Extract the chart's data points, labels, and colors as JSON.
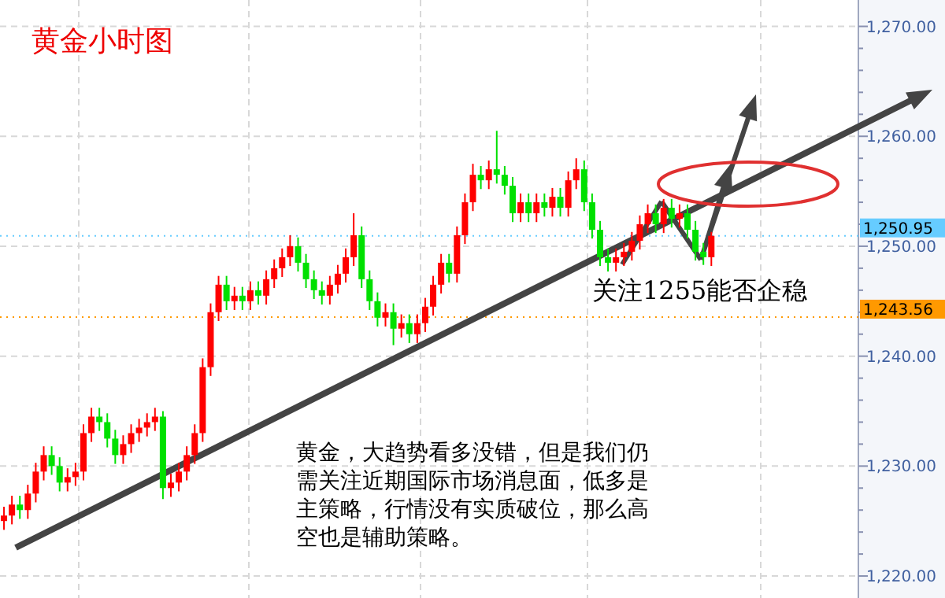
{
  "chart_data": {
    "type": "candlestick",
    "title": "黄金小时图",
    "categories": [
      null,
      null,
      null,
      null,
      null,
      null,
      null,
      null,
      null,
      null,
      null,
      null,
      null,
      null,
      null,
      null,
      null,
      null,
      null,
      null,
      null,
      null,
      null,
      null,
      null,
      null,
      null,
      null,
      null,
      null,
      null,
      null,
      null,
      null,
      null,
      null,
      null,
      null,
      null,
      null,
      null,
      null,
      null,
      null,
      null,
      null,
      null,
      null,
      null,
      null,
      null,
      null,
      null,
      null,
      null,
      null,
      null,
      null,
      null,
      null,
      null,
      null,
      null,
      null,
      null,
      null,
      null,
      null,
      null,
      null,
      null,
      null,
      null,
      null,
      null,
      null,
      null,
      null,
      null,
      null,
      null,
      null,
      null,
      null,
      null,
      null,
      null,
      null,
      null,
      null,
      null,
      null,
      null,
      null,
      null,
      null,
      null,
      null,
      null,
      null,
      null,
      null,
      null,
      null,
      null,
      null,
      null,
      null
    ],
    "ohlc": [
      [
        1225.0,
        1226.3,
        1224.2,
        1225.5
      ],
      [
        1225.5,
        1227.3,
        1224.7,
        1226.5
      ],
      [
        1226.5,
        1227.3,
        1225.2,
        1226.0
      ],
      [
        1226.0,
        1228.3,
        1225.2,
        1227.5
      ],
      [
        1227.5,
        1230.3,
        1226.7,
        1229.5
      ],
      [
        1229.5,
        1231.8,
        1228.7,
        1231.0
      ],
      [
        1231.0,
        1231.8,
        1229.2,
        1230.0
      ],
      [
        1230.0,
        1230.8,
        1227.7,
        1228.5
      ],
      [
        1228.5,
        1229.8,
        1227.7,
        1229.0
      ],
      [
        1229.0,
        1230.3,
        1228.2,
        1229.5
      ],
      [
        1229.5,
        1233.8,
        1228.7,
        1233.0
      ],
      [
        1233.0,
        1235.3,
        1232.2,
        1234.5
      ],
      [
        1234.5,
        1235.3,
        1233.2,
        1234.0
      ],
      [
        1234.0,
        1234.8,
        1231.7,
        1232.5
      ],
      [
        1232.5,
        1233.3,
        1230.2,
        1231.0
      ],
      [
        1231.0,
        1232.8,
        1230.2,
        1232.0
      ],
      [
        1232.0,
        1233.8,
        1231.2,
        1233.0
      ],
      [
        1233.0,
        1234.3,
        1232.2,
        1233.5
      ],
      [
        1233.5,
        1234.8,
        1232.7,
        1234.0
      ],
      [
        1234.0,
        1235.3,
        1233.2,
        1234.5
      ],
      [
        1234.5,
        1235.0,
        1227.0,
        1228.0
      ],
      [
        1228.0,
        1229.3,
        1227.2,
        1228.5
      ],
      [
        1228.5,
        1230.3,
        1227.7,
        1229.5
      ],
      [
        1229.5,
        1231.8,
        1228.7,
        1231.0
      ],
      [
        1231.0,
        1233.8,
        1230.2,
        1233.0
      ],
      [
        1233.0,
        1239.8,
        1232.2,
        1239.0
      ],
      [
        1239.0,
        1244.8,
        1238.2,
        1244.0
      ],
      [
        1244.0,
        1247.3,
        1243.2,
        1246.5
      ],
      [
        1246.5,
        1247.3,
        1244.2,
        1245.0
      ],
      [
        1245.0,
        1246.3,
        1244.2,
        1245.5
      ],
      [
        1245.5,
        1246.3,
        1244.2,
        1245.0
      ],
      [
        1245.0,
        1246.8,
        1244.2,
        1246.0
      ],
      [
        1246.0,
        1246.8,
        1244.7,
        1245.5
      ],
      [
        1245.5,
        1247.8,
        1244.7,
        1247.0
      ],
      [
        1247.0,
        1248.8,
        1246.2,
        1248.0
      ],
      [
        1248.0,
        1249.8,
        1247.2,
        1249.0
      ],
      [
        1249.0,
        1251.0,
        1248.2,
        1250.0
      ],
      [
        1250.0,
        1250.8,
        1247.7,
        1248.5
      ],
      [
        1248.5,
        1249.3,
        1246.2,
        1247.0
      ],
      [
        1247.0,
        1247.8,
        1245.2,
        1246.0
      ],
      [
        1246.0,
        1246.8,
        1244.7,
        1245.5
      ],
      [
        1245.5,
        1247.3,
        1244.7,
        1246.5
      ],
      [
        1246.5,
        1248.3,
        1245.7,
        1247.5
      ],
      [
        1247.5,
        1249.8,
        1246.7,
        1249.0
      ],
      [
        1249.0,
        1253.0,
        1248.2,
        1251.0
      ],
      [
        1251.0,
        1251.8,
        1246.2,
        1247.0
      ],
      [
        1247.0,
        1247.8,
        1244.2,
        1245.0
      ],
      [
        1245.0,
        1245.8,
        1242.7,
        1243.5
      ],
      [
        1243.5,
        1244.8,
        1242.7,
        1244.0
      ],
      [
        1244.0,
        1244.8,
        1241.0,
        1242.5
      ],
      [
        1242.5,
        1243.8,
        1241.7,
        1243.0
      ],
      [
        1243.0,
        1243.8,
        1241.2,
        1242.0
      ],
      [
        1242.0,
        1243.8,
        1241.2,
        1243.0
      ],
      [
        1243.0,
        1245.3,
        1242.2,
        1244.5
      ],
      [
        1244.5,
        1247.3,
        1243.7,
        1246.5
      ],
      [
        1246.5,
        1249.3,
        1245.7,
        1248.5
      ],
      [
        1248.5,
        1249.3,
        1246.7,
        1247.5
      ],
      [
        1247.5,
        1251.8,
        1246.7,
        1251.0
      ],
      [
        1251.0,
        1254.8,
        1250.2,
        1254.0
      ],
      [
        1254.0,
        1257.5,
        1253.2,
        1256.5
      ],
      [
        1256.5,
        1257.3,
        1255.2,
        1256.0
      ],
      [
        1256.0,
        1257.8,
        1255.2,
        1257.0
      ],
      [
        1257.0,
        1260.5,
        1255.7,
        1256.5
      ],
      [
        1256.5,
        1257.3,
        1254.7,
        1255.5
      ],
      [
        1255.5,
        1256.3,
        1252.2,
        1253.0
      ],
      [
        1253.0,
        1254.8,
        1252.2,
        1254.0
      ],
      [
        1254.0,
        1254.8,
        1252.2,
        1253.0
      ],
      [
        1253.0,
        1254.8,
        1252.2,
        1254.0
      ],
      [
        1254.0,
        1254.8,
        1252.7,
        1253.5
      ],
      [
        1253.5,
        1255.3,
        1252.7,
        1254.5
      ],
      [
        1254.5,
        1255.3,
        1252.7,
        1253.5
      ],
      [
        1253.5,
        1256.8,
        1252.7,
        1256.0
      ],
      [
        1256.0,
        1258.0,
        1255.2,
        1257.0
      ],
      [
        1257.0,
        1257.8,
        1253.2,
        1254.0
      ],
      [
        1254.0,
        1254.8,
        1250.7,
        1251.5
      ],
      [
        1251.5,
        1252.3,
        1248.2,
        1249.0
      ],
      [
        1249.0,
        1249.8,
        1247.7,
        1248.5
      ],
      [
        1248.5,
        1249.8,
        1247.7,
        1249.0
      ],
      [
        1249.0,
        1250.3,
        1248.2,
        1249.5
      ],
      [
        1249.5,
        1251.3,
        1248.7,
        1250.5
      ],
      [
        1250.5,
        1252.8,
        1249.7,
        1252.0
      ],
      [
        1252.0,
        1253.8,
        1251.2,
        1253.0
      ],
      [
        1253.0,
        1253.8,
        1251.2,
        1252.0
      ],
      [
        1252.0,
        1254.3,
        1251.2,
        1253.5
      ],
      [
        1253.5,
        1254.3,
        1251.7,
        1252.5
      ],
      [
        1252.5,
        1253.8,
        1251.7,
        1253.0
      ],
      [
        1253.0,
        1253.8,
        1250.7,
        1251.5
      ],
      [
        1251.5,
        1252.3,
        1248.7,
        1249.5
      ],
      [
        1249.5,
        1250.3,
        1248.3,
        1249.0
      ],
      [
        1249.0,
        1251.3,
        1248.2,
        1250.95
      ],
      null,
      null,
      null,
      null,
      null,
      null,
      null,
      null,
      null,
      null,
      null,
      null,
      null,
      null,
      null,
      null,
      null,
      null
    ],
    "colors": [
      "#ff0000",
      "#ff0000",
      "#00e000",
      "#ff0000",
      "#ff0000",
      "#ff0000",
      "#00e000",
      "#00e000",
      "#ff0000",
      "#ff0000",
      "#ff0000",
      "#ff0000",
      "#00e000",
      "#00e000",
      "#00e000",
      "#ff0000",
      "#ff0000",
      "#ff0000",
      "#ff0000",
      "#ff0000",
      "#00e000",
      "#ff0000",
      "#ff0000",
      "#ff0000",
      "#ff0000",
      "#ff0000",
      "#ff0000",
      "#ff0000",
      "#00e000",
      "#ff0000",
      "#00e000",
      "#ff0000",
      "#00e000",
      "#ff0000",
      "#ff0000",
      "#ff0000",
      "#ff0000",
      "#00e000",
      "#00e000",
      "#00e000",
      "#00e000",
      "#ff0000",
      "#ff0000",
      "#ff0000",
      "#ff0000",
      "#00e000",
      "#00e000",
      "#00e000",
      "#ff0000",
      "#00e000",
      "#ff0000",
      "#00e000",
      "#ff0000",
      "#ff0000",
      "#ff0000",
      "#ff0000",
      "#00e000",
      "#ff0000",
      "#ff0000",
      "#ff0000",
      "#00e000",
      "#ff0000",
      "#00e000",
      "#00e000",
      "#00e000",
      "#ff0000",
      "#00e000",
      "#ff0000",
      "#00e000",
      "#ff0000",
      "#00e000",
      "#ff0000",
      "#ff0000",
      "#00e000",
      "#00e000",
      "#00e000",
      "#00e000",
      "#ff0000",
      "#ff0000",
      "#ff0000",
      "#ff0000",
      "#ff0000",
      "#00e000",
      "#ff0000",
      "#00e000",
      "#ff0000",
      "#00e000",
      "#00e000",
      "#00e000",
      "#ff0000",
      null,
      null,
      null,
      null,
      null,
      null,
      null,
      null,
      null,
      null,
      null,
      null,
      null,
      null,
      null,
      null,
      null,
      null
    ],
    "ylim": [
      1218,
      1272.4
    ],
    "yticks": [
      {
        "value": 1220,
        "label": "1,220.00"
      },
      {
        "value": 1222,
        "label": null
      },
      {
        "value": 1224,
        "label": null
      },
      {
        "value": 1226,
        "label": null
      },
      {
        "value": 1228,
        "label": null
      },
      {
        "value": 1230,
        "label": "1,230.00"
      },
      {
        "value": 1232,
        "label": null
      },
      {
        "value": 1234,
        "label": null
      },
      {
        "value": 1236,
        "label": null
      },
      {
        "value": 1238,
        "label": null
      },
      {
        "value": 1240,
        "label": "1,240.00"
      },
      {
        "value": 1242,
        "label": null
      },
      {
        "value": 1244,
        "label": null
      },
      {
        "value": 1246,
        "label": null
      },
      {
        "value": 1248,
        "label": null
      },
      {
        "value": 1250,
        "label": "1,250.00"
      },
      {
        "value": 1252,
        "label": null
      },
      {
        "value": 1254,
        "label": null
      },
      {
        "value": 1256,
        "label": null
      },
      {
        "value": 1258,
        "label": null
      },
      {
        "value": 1260,
        "label": "1,260.00"
      },
      {
        "value": 1262,
        "label": null
      },
      {
        "value": 1264,
        "label": null
      },
      {
        "value": 1266,
        "label": null
      },
      {
        "value": 1268,
        "label": null
      },
      {
        "value": 1270,
        "label": "1,270.00"
      }
    ],
    "grid": "y",
    "tick_labels": "y",
    "ref_lines": [
      {
        "axis": "y",
        "value": 1250.95,
        "label": "1,250.95",
        "color": "#66ccff"
      },
      {
        "axis": "y",
        "value": 1243.56,
        "label": "1,243.56",
        "color": "#ff9900"
      }
    ],
    "annotations": [
      "关注1255能否企稳",
      "黄金，大趋势看多没错，但是我们仍需关注近期国际市场消息面，低多是主策略，行情没有实质破位，那么高空也是辅助策略。"
    ]
  }
}
